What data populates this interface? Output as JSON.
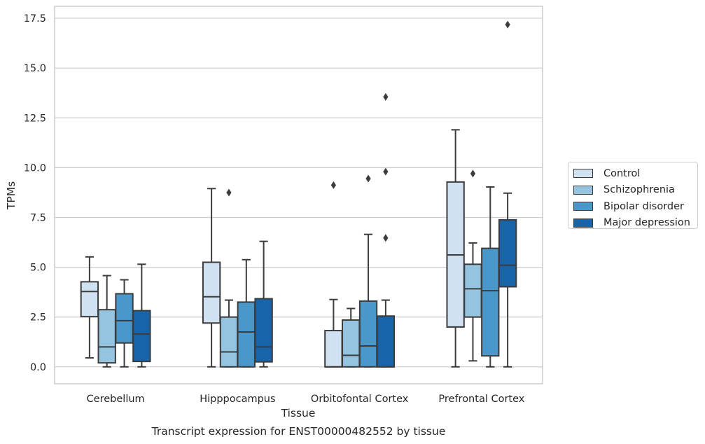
{
  "caption": "Transcript expression for ENST00000482552 by tissue",
  "chart_data": {
    "type": "boxplot",
    "xlabel": "Tissue",
    "ylabel": "TPMs",
    "ylim": [
      -0.85,
      18.1
    ],
    "yticks": [
      0.0,
      2.5,
      5.0,
      7.5,
      10.0,
      12.5,
      15.0,
      17.5
    ],
    "ytick_labels": [
      "0.0",
      "2.5",
      "5.0",
      "7.5",
      "10.0",
      "12.5",
      "15.0",
      "17.5"
    ],
    "grid": true,
    "legend_placement": "right",
    "categories": [
      "Cerebellum",
      "Hipppocampus",
      "Orbitofontal Cortex",
      "Prefrontal Cortex"
    ],
    "series": [
      {
        "name": "Control",
        "color": "#d0e1f2",
        "boxes": [
          {
            "whislo": 0.45,
            "q1": 2.52,
            "med": 3.78,
            "q3": 4.27,
            "whishi": 5.52,
            "fliers": []
          },
          {
            "whislo": 0.0,
            "q1": 2.2,
            "med": 3.52,
            "q3": 5.25,
            "whishi": 8.95,
            "fliers": []
          },
          {
            "whislo": 0.0,
            "q1": 0.0,
            "med": 0.0,
            "q3": 1.82,
            "whishi": 3.38,
            "fliers": [
              9.12
            ]
          },
          {
            "whislo": 0.0,
            "q1": 2.0,
            "med": 5.62,
            "q3": 9.28,
            "whishi": 11.9,
            "fliers": []
          }
        ]
      },
      {
        "name": "Schizophrenia",
        "color": "#94c4df",
        "boxes": [
          {
            "whislo": 0.0,
            "q1": 0.2,
            "med": 1.0,
            "q3": 2.87,
            "whishi": 4.58,
            "fliers": []
          },
          {
            "whislo": 0.0,
            "q1": 0.0,
            "med": 0.75,
            "q3": 2.5,
            "whishi": 3.35,
            "fliers": [
              8.75
            ]
          },
          {
            "whislo": 0.0,
            "q1": 0.0,
            "med": 0.58,
            "q3": 2.35,
            "whishi": 2.93,
            "fliers": []
          },
          {
            "whislo": 0.3,
            "q1": 2.5,
            "med": 3.92,
            "q3": 5.15,
            "whishi": 6.22,
            "fliers": [
              9.7
            ]
          }
        ]
      },
      {
        "name": "Bipolar disorder",
        "color": "#4a98c9",
        "boxes": [
          {
            "whislo": 0.0,
            "q1": 1.2,
            "med": 2.32,
            "q3": 3.67,
            "whishi": 4.37,
            "fliers": []
          },
          {
            "whislo": 0.0,
            "q1": 0.0,
            "med": 1.75,
            "q3": 3.25,
            "whishi": 5.38,
            "fliers": []
          },
          {
            "whislo": 0.0,
            "q1": 0.0,
            "med": 1.05,
            "q3": 3.3,
            "whishi": 6.65,
            "fliers": [
              9.45
            ]
          },
          {
            "whislo": 0.0,
            "q1": 0.55,
            "med": 3.82,
            "q3": 5.95,
            "whishi": 9.03,
            "fliers": []
          }
        ]
      },
      {
        "name": "Major depression",
        "color": "#1764ab",
        "boxes": [
          {
            "whislo": 0.0,
            "q1": 0.27,
            "med": 1.65,
            "q3": 2.82,
            "whishi": 5.15,
            "fliers": []
          },
          {
            "whislo": 0.0,
            "q1": 0.25,
            "med": 1.0,
            "q3": 3.42,
            "whishi": 6.3,
            "fliers": []
          },
          {
            "whislo": 0.0,
            "q1": 0.0,
            "med": 0.0,
            "q3": 2.55,
            "whishi": 3.35,
            "fliers": [
              9.8,
              13.55,
              6.47
            ]
          },
          {
            "whislo": 0.0,
            "q1": 4.02,
            "med": 5.1,
            "q3": 7.38,
            "whishi": 8.72,
            "fliers": [
              17.18
            ]
          }
        ]
      }
    ]
  }
}
